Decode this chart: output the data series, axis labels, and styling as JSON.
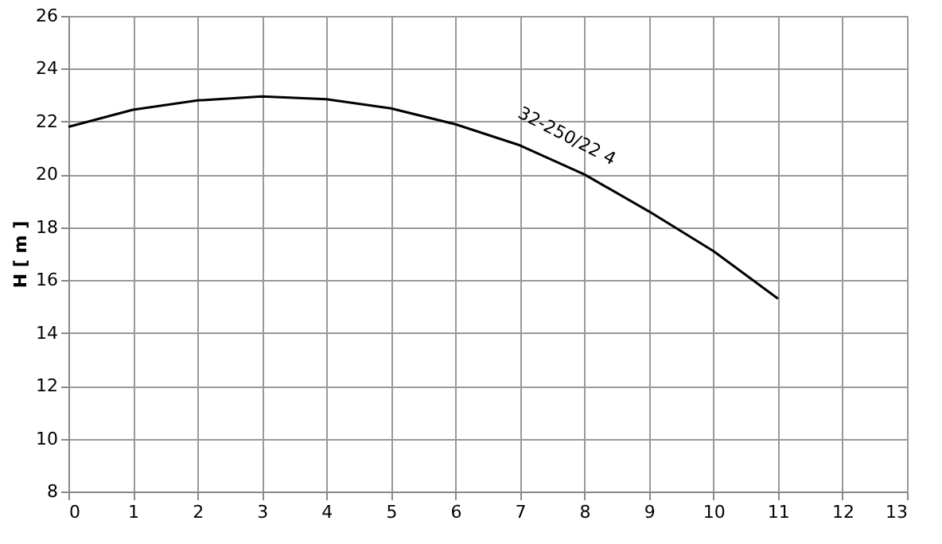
{
  "chart_data": {
    "type": "line",
    "ylabel": "H [ m ]",
    "x": [
      0,
      1,
      2,
      3,
      4,
      5,
      6,
      7,
      8,
      9,
      10,
      11
    ],
    "series": [
      {
        "color": "#000000",
        "values": [
          21.8,
          22.45,
          22.8,
          22.95,
          22.85,
          22.5,
          21.9,
          21.1,
          20.0,
          18.6,
          17.1,
          15.3
        ]
      }
    ],
    "annotations": [
      "32-250/22 4"
    ],
    "xlim": [
      0,
      13
    ],
    "xticks": [
      0,
      1,
      2,
      3,
      4,
      5,
      6,
      7,
      8,
      9,
      10,
      11,
      12,
      13
    ],
    "ylim": [
      8,
      26
    ],
    "yticks": [
      8,
      10,
      12,
      14,
      16,
      18,
      20,
      22,
      24,
      26
    ],
    "grid": true,
    "marker": "none",
    "line_style": "solid"
  }
}
